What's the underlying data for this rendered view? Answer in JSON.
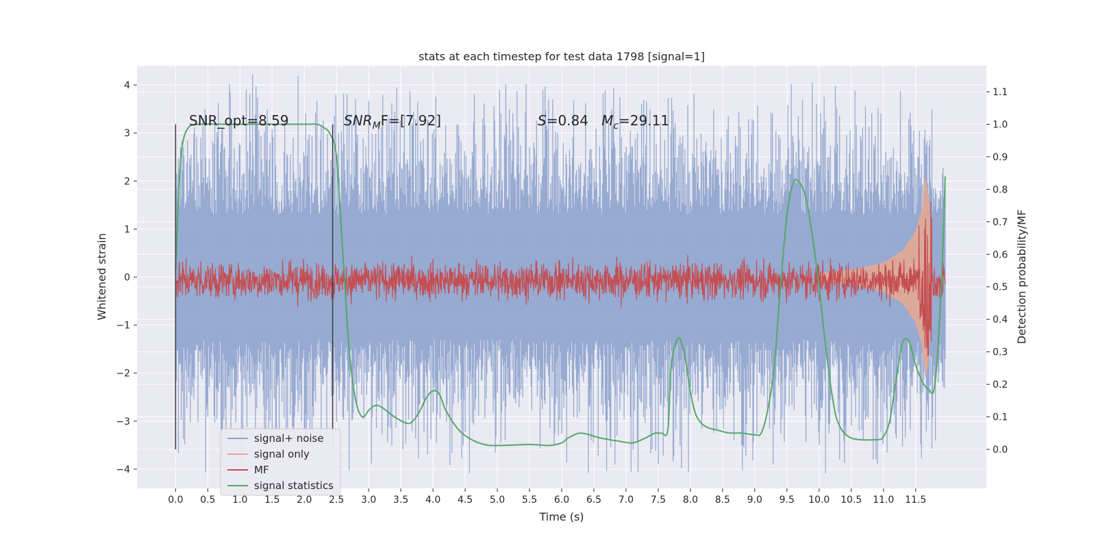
{
  "chart_data": {
    "type": "line",
    "title": "stats at each timestep for test data 1798 [signal=1]",
    "xlabel": "Time (s)",
    "ylabel": "Whitened strain",
    "y2label": "Detection probability/MF",
    "xlim": [
      -0.6,
      12.6
    ],
    "ylim": [
      -4.4,
      4.4
    ],
    "y2lim": [
      -0.12,
      1.18
    ],
    "x_ticks": [
      "0.0",
      "0.5",
      "1.0",
      "1.5",
      "2.0",
      "2.5",
      "3.0",
      "3.5",
      "4.0",
      "4.5",
      "5.0",
      "5.5",
      "6.0",
      "6.5",
      "7.0",
      "7.5",
      "8.0",
      "8.5",
      "9.0",
      "9.5",
      "10.0",
      "10.5",
      "11.0",
      "11.5"
    ],
    "y_ticks": [
      "4",
      "3",
      "2",
      "1",
      "0",
      "−1",
      "−2",
      "−3",
      "−4"
    ],
    "y2_ticks": [
      "1.1",
      "1.0",
      "0.9",
      "0.8",
      "0.7",
      "0.6",
      "0.5",
      "0.4",
      "0.3",
      "0.2",
      "0.1",
      "0.0"
    ],
    "grid": true,
    "legend_position": "lower-left",
    "annotations": [
      {
        "id": "snr-opt",
        "text": "SNR_opt=8.59"
      },
      {
        "id": "snr-mf",
        "main": "SNR",
        "sub": "M",
        "rest": "F=[7.92]"
      },
      {
        "id": "stats",
        "main": "S",
        "rest1": "=0.84   ",
        "main2": "M",
        "sub2": "c",
        "rest2": "=29.11"
      }
    ],
    "vlines": [
      0.0,
      2.44
    ],
    "noise_band": {
      "x_start": 0.0,
      "x_end": 11.96,
      "upper_typical": 2.3,
      "lower_typical": -2.3,
      "max": 4.05,
      "min": -4.1
    },
    "series": [
      {
        "name": "signal+ noise",
        "color": "#8ea3cd",
        "description_axis": "left"
      },
      {
        "name": "signal only",
        "color": "#e8a98f",
        "description_axis": "left",
        "x": [
          10.0,
          10.5,
          11.0,
          11.3,
          11.5,
          11.6,
          11.65,
          11.7,
          11.75
        ],
        "amplitude": [
          0.08,
          0.15,
          0.3,
          0.55,
          0.95,
          1.4,
          2.1,
          1.7,
          0.5
        ]
      },
      {
        "name": "MF",
        "color": "#c44e52",
        "description_axis": "right",
        "mean": 0.52,
        "spread": 0.04
      },
      {
        "name": "signal statistics",
        "color": "#55a868",
        "description_axis": "right",
        "x": [
          0.0,
          0.05,
          0.1,
          0.2,
          0.4,
          1.0,
          2.0,
          2.2,
          2.3,
          2.4,
          2.5,
          2.6,
          2.7,
          2.8,
          2.9,
          3.0,
          3.1,
          3.2,
          3.4,
          3.6,
          3.7,
          3.8,
          3.9,
          4.0,
          4.1,
          4.2,
          4.4,
          4.6,
          4.8,
          5.0,
          5.5,
          5.8,
          6.0,
          6.1,
          6.3,
          6.6,
          6.9,
          7.1,
          7.3,
          7.45,
          7.55,
          7.65,
          7.7,
          7.8,
          7.9,
          8.1,
          8.5,
          8.8,
          9.0,
          9.1,
          9.2,
          9.3,
          9.4,
          9.5,
          9.6,
          9.7,
          9.8,
          9.9,
          10.0,
          10.1,
          10.2,
          10.3,
          10.5,
          10.9,
          11.0,
          11.1,
          11.2,
          11.3,
          11.4,
          11.5,
          11.6,
          11.7,
          11.8,
          11.9,
          11.96
        ],
        "y": [
          0.55,
          0.8,
          0.93,
          0.99,
          1.0,
          1.0,
          1.0,
          1.0,
          0.99,
          0.97,
          0.9,
          0.6,
          0.3,
          0.15,
          0.1,
          0.12,
          0.135,
          0.13,
          0.1,
          0.08,
          0.09,
          0.12,
          0.16,
          0.18,
          0.17,
          0.12,
          0.06,
          0.03,
          0.015,
          0.012,
          0.015,
          0.012,
          0.02,
          0.035,
          0.05,
          0.035,
          0.025,
          0.02,
          0.035,
          0.05,
          0.05,
          0.06,
          0.25,
          0.34,
          0.3,
          0.1,
          0.055,
          0.05,
          0.045,
          0.05,
          0.12,
          0.25,
          0.5,
          0.72,
          0.82,
          0.82,
          0.77,
          0.65,
          0.5,
          0.32,
          0.17,
          0.08,
          0.035,
          0.03,
          0.04,
          0.09,
          0.22,
          0.33,
          0.33,
          0.26,
          0.21,
          0.185,
          0.2,
          0.5,
          0.84
        ]
      }
    ]
  }
}
